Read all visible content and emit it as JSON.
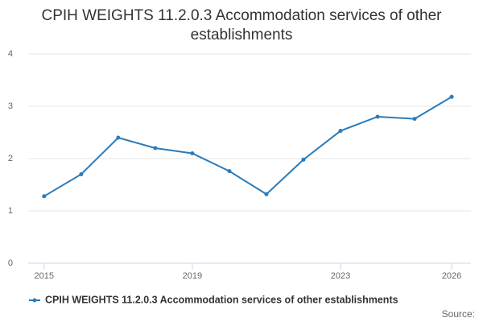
{
  "chart_data": {
    "type": "line",
    "title": "CPIH WEIGHTS 11.2.0.3 Accommodation services of other establishments",
    "x": [
      2015,
      2016,
      2017,
      2018,
      2019,
      2020,
      2021,
      2022,
      2023,
      2024,
      2025,
      2026
    ],
    "series": [
      {
        "name": "CPIH WEIGHTS 11.2.0.3 Accommodation services of other establishments",
        "color": "#2b7bb9",
        "values": [
          1.28,
          1.7,
          2.4,
          2.2,
          2.1,
          1.76,
          1.32,
          1.98,
          2.53,
          2.8,
          2.76,
          3.18
        ]
      }
    ],
    "xlim": [
      2014.57,
      2026.52
    ],
    "xticks": [
      2015,
      2019,
      2023,
      2026
    ],
    "ylim": [
      0,
      4
    ],
    "yticks": [
      0,
      1,
      2,
      3,
      4
    ],
    "grid": true,
    "source": "Source:"
  }
}
